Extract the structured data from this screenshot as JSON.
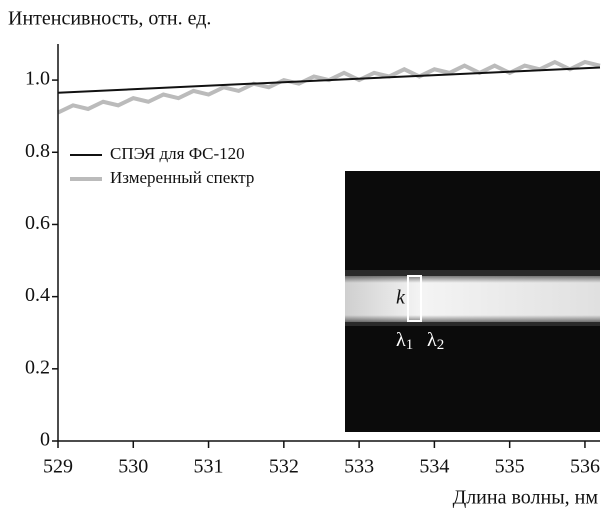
{
  "chart_data": {
    "type": "line",
    "y_label": "Интенсивность, отн. ед.",
    "x_label": "Длина волны, нм",
    "xlim": [
      529,
      536.2
    ],
    "xticks": [
      529,
      530,
      531,
      532,
      533,
      534,
      535,
      536
    ],
    "ylim": [
      0,
      1.1
    ],
    "yticks": [
      0,
      0.2,
      0.4,
      0.6,
      0.8,
      {
        "value": 1,
        "label": "1.0"
      }
    ],
    "legend": "upper left",
    "series": [
      {
        "name": "СПЭЯ для ФС-120",
        "color": "#111111",
        "width": 2,
        "x": [
          529,
          536.2
        ],
        "values": [
          0.965,
          1.035
        ]
      },
      {
        "name": "Измеренный спектр",
        "color": "#bbbbbb",
        "width": 4,
        "x": [
          529.0,
          529.2,
          529.4,
          529.6,
          529.8,
          530.0,
          530.2,
          530.4,
          530.6,
          530.8,
          531.0,
          531.2,
          531.4,
          531.6,
          531.8,
          532.0,
          532.2,
          532.4,
          532.6,
          532.8,
          533.0,
          533.2,
          533.4,
          533.6,
          533.8,
          534.0,
          534.2,
          534.4,
          534.6,
          534.8,
          535.0,
          535.2,
          535.4,
          535.6,
          535.8,
          536.0,
          536.2
        ],
        "values": [
          0.91,
          0.93,
          0.92,
          0.94,
          0.93,
          0.95,
          0.94,
          0.96,
          0.95,
          0.97,
          0.96,
          0.98,
          0.97,
          0.99,
          0.98,
          1.0,
          0.99,
          1.01,
          1.0,
          1.02,
          1.0,
          1.02,
          1.01,
          1.03,
          1.01,
          1.03,
          1.02,
          1.04,
          1.02,
          1.04,
          1.02,
          1.04,
          1.03,
          1.05,
          1.03,
          1.05,
          1.04
        ]
      }
    ],
    "inset": {
      "label": "k",
      "markers": [
        {
          "base": "λ",
          "sub": "1"
        },
        {
          "base": "λ",
          "sub": "2"
        }
      ]
    }
  }
}
